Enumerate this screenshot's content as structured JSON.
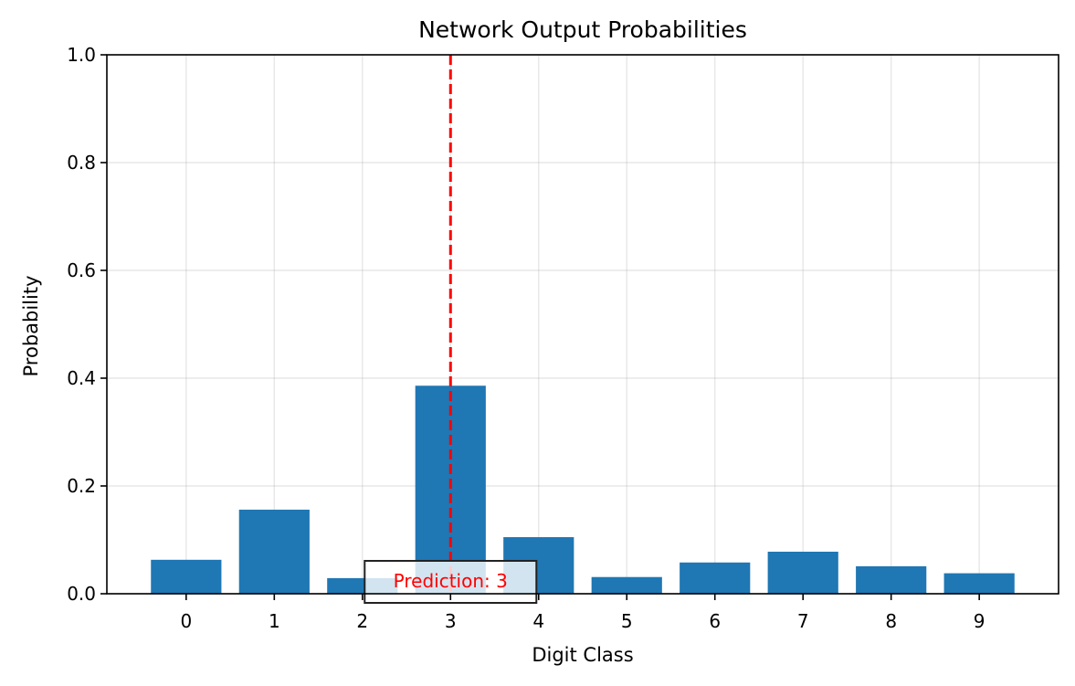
{
  "chart_data": {
    "type": "bar",
    "title": "Network Output Probabilities",
    "xlabel": "Digit Class",
    "ylabel": "Probability",
    "categories": [
      "0",
      "1",
      "2",
      "3",
      "4",
      "5",
      "6",
      "7",
      "8",
      "9"
    ],
    "values": [
      0.063,
      0.156,
      0.029,
      0.386,
      0.105,
      0.031,
      0.058,
      0.078,
      0.051,
      0.038
    ],
    "ylim": [
      0,
      1.0
    ],
    "yticks": [
      "0.0",
      "0.2",
      "0.4",
      "0.6",
      "0.8",
      "1.0"
    ],
    "grid": true,
    "bar_color": "#1f77b4",
    "prediction": {
      "value": 3,
      "label": "Prediction: 3",
      "line_color": "#ff0000",
      "line_style": "dashed"
    }
  }
}
